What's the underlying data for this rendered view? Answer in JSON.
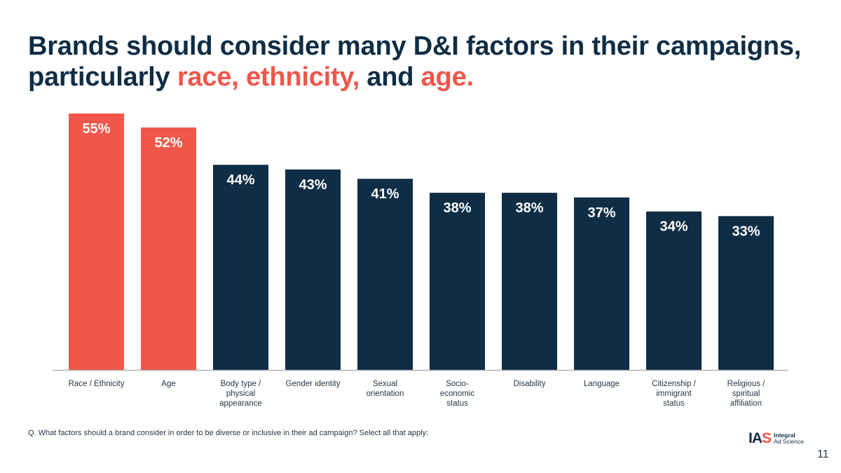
{
  "title": {
    "part1": "Brands should consider many D&I factors in their campaigns,",
    "part2": "particularly ",
    "hl1": "race,",
    "hl2": "ethnicity,",
    "mid": "and",
    "hl3": "age."
  },
  "colors": {
    "highlight": "#f0564a",
    "navy": "#0f2d44",
    "axis": "#b5b5b5"
  },
  "chart_data": {
    "type": "bar",
    "title": "",
    "xlabel": "",
    "ylabel": "",
    "ylim": [
      0,
      55
    ],
    "grid": false,
    "categories": [
      [
        "Race / Ethnicity"
      ],
      [
        "Age"
      ],
      [
        "Body type /",
        "physical",
        "appearance"
      ],
      [
        "Gender identity"
      ],
      [
        "Sexual",
        "orientation"
      ],
      [
        "Socio-",
        "economic",
        "status"
      ],
      [
        "Disability"
      ],
      [
        "Language"
      ],
      [
        "Citizenship /",
        "immigrant",
        "status"
      ],
      [
        "Religious /",
        "spiritual",
        "affiliation"
      ]
    ],
    "values": [
      55,
      52,
      44,
      43,
      41,
      38,
      38,
      37,
      34,
      33
    ],
    "value_labels": [
      "55%",
      "52%",
      "44%",
      "43%",
      "41%",
      "38%",
      "38%",
      "37%",
      "34%",
      "33%"
    ],
    "highlighted": [
      0,
      1
    ]
  },
  "footnote": "Q. What factors should a brand consider in order to be diverse or inclusive in their ad campaign? Select all that apply:",
  "logo": {
    "mark_a": "IA",
    "mark_b": "S",
    "line1": "Integral",
    "line2": "Ad Science"
  },
  "page_number": "11"
}
